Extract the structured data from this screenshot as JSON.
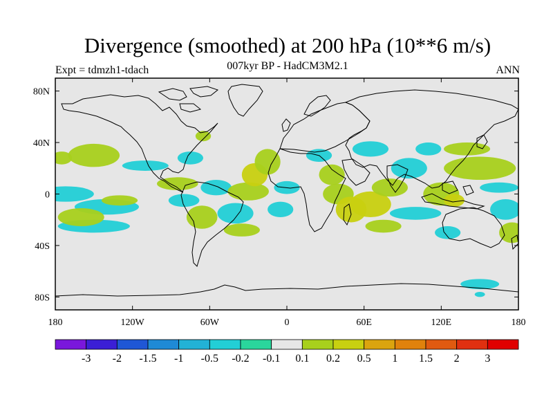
{
  "title": "Divergence (smoothed) at 200 hPa (10**6 m/s)",
  "subtitle": "007kyr BP - HadCM3M2.1",
  "left_label": "Expt = tdmzh1-tdach",
  "right_label": "ANN",
  "lat_labels": [
    "80N",
    "40N",
    "0",
    "40S",
    "80S"
  ],
  "lat_values": [
    80,
    40,
    0,
    -40,
    -80
  ],
  "lon_labels": [
    "180",
    "120W",
    "60W",
    "0",
    "60E",
    "120E",
    "180"
  ],
  "lon_values": [
    -180,
    -120,
    -60,
    0,
    60,
    120,
    180
  ],
  "colorbar": {
    "labels": [
      "-3",
      "-2",
      "-1.5",
      "-1",
      "-0.5",
      "-0.2",
      "-0.1",
      "0.1",
      "0.2",
      "0.5",
      "1",
      "1.5",
      "2",
      "3"
    ],
    "colors": [
      "#7a17dc",
      "#3b1fd6",
      "#1f57d6",
      "#1f8ad6",
      "#22b2d6",
      "#22cfd6",
      "#2ad69c",
      "#e6e6e6",
      "#a8d01c",
      "#c8d010",
      "#dba40f",
      "#e0820c",
      "#e05a10",
      "#e03010",
      "#e00000"
    ]
  },
  "colors": {
    "land_ocean_bg": "#e6e6e6",
    "coast": "#000000"
  },
  "chart_data": {
    "type": "map",
    "projection": "cylindrical-equidistant",
    "title": "Divergence (smoothed) at 200 hPa (10**6 m/s)",
    "subtitle": "007kyr BP - HadCM3M2.1",
    "lon_range": [
      -180,
      180
    ],
    "lat_range": [
      -90,
      90
    ],
    "note": "Approximate anomaly patches (lon/lat centers, half-widths in degrees, class = contour level color index)",
    "patches": [
      {
        "lon": -172,
        "lat": 0,
        "rx": 22,
        "ry": 6,
        "cls": 5
      },
      {
        "lon": -140,
        "lat": -10,
        "rx": 25,
        "ry": 6,
        "cls": 5
      },
      {
        "lon": -150,
        "lat": 30,
        "rx": 20,
        "ry": 9,
        "cls": 8
      },
      {
        "lon": -175,
        "lat": 28,
        "rx": 8,
        "ry": 5,
        "cls": 8
      },
      {
        "lon": -150,
        "lat": -25,
        "rx": 28,
        "ry": 5,
        "cls": 5
      },
      {
        "lon": -160,
        "lat": -18,
        "rx": 18,
        "ry": 7,
        "cls": 8
      },
      {
        "lon": -130,
        "lat": -5,
        "rx": 14,
        "ry": 4,
        "cls": 8
      },
      {
        "lon": -110,
        "lat": 22,
        "rx": 18,
        "ry": 4,
        "cls": 5
      },
      {
        "lon": -85,
        "lat": 8,
        "rx": 16,
        "ry": 5,
        "cls": 8
      },
      {
        "lon": -80,
        "lat": -5,
        "rx": 12,
        "ry": 5,
        "cls": 5
      },
      {
        "lon": -66,
        "lat": -18,
        "rx": 12,
        "ry": 9,
        "cls": 8
      },
      {
        "lon": -40,
        "lat": -15,
        "rx": 14,
        "ry": 8,
        "cls": 5
      },
      {
        "lon": -55,
        "lat": 5,
        "rx": 12,
        "ry": 6,
        "cls": 5
      },
      {
        "lon": -30,
        "lat": 2,
        "rx": 16,
        "ry": 7,
        "cls": 8
      },
      {
        "lon": -25,
        "lat": 15,
        "rx": 10,
        "ry": 9,
        "cls": 9
      },
      {
        "lon": -15,
        "lat": 25,
        "rx": 10,
        "ry": 10,
        "cls": 8
      },
      {
        "lon": -35,
        "lat": -28,
        "rx": 14,
        "ry": 5,
        "cls": 8
      },
      {
        "lon": -75,
        "lat": 28,
        "rx": 10,
        "ry": 5,
        "cls": 5
      },
      {
        "lon": -65,
        "lat": 45,
        "rx": 6,
        "ry": 4,
        "cls": 8
      },
      {
        "lon": 0,
        "lat": 5,
        "rx": 10,
        "ry": 5,
        "cls": 5
      },
      {
        "lon": -5,
        "lat": -12,
        "rx": 10,
        "ry": 6,
        "cls": 5
      },
      {
        "lon": 25,
        "lat": 30,
        "rx": 10,
        "ry": 5,
        "cls": 5
      },
      {
        "lon": 35,
        "lat": 15,
        "rx": 10,
        "ry": 8,
        "cls": 8
      },
      {
        "lon": 40,
        "lat": 0,
        "rx": 12,
        "ry": 8,
        "cls": 8
      },
      {
        "lon": 50,
        "lat": -12,
        "rx": 12,
        "ry": 10,
        "cls": 9
      },
      {
        "lon": 65,
        "lat": -8,
        "rx": 16,
        "ry": 10,
        "cls": 9
      },
      {
        "lon": 75,
        "lat": -25,
        "rx": 14,
        "ry": 5,
        "cls": 8
      },
      {
        "lon": 80,
        "lat": 5,
        "rx": 14,
        "ry": 7,
        "cls": 8
      },
      {
        "lon": 65,
        "lat": 35,
        "rx": 14,
        "ry": 6,
        "cls": 5
      },
      {
        "lon": 95,
        "lat": 20,
        "rx": 14,
        "ry": 8,
        "cls": 5
      },
      {
        "lon": 110,
        "lat": 35,
        "rx": 10,
        "ry": 5,
        "cls": 5
      },
      {
        "lon": 120,
        "lat": 0,
        "rx": 14,
        "ry": 9,
        "cls": 8
      },
      {
        "lon": 130,
        "lat": -5,
        "rx": 8,
        "ry": 5,
        "cls": 9
      },
      {
        "lon": 150,
        "lat": 20,
        "rx": 28,
        "ry": 9,
        "cls": 8
      },
      {
        "lon": 140,
        "lat": 35,
        "rx": 18,
        "ry": 5,
        "cls": 8
      },
      {
        "lon": 165,
        "lat": 5,
        "rx": 15,
        "ry": 4,
        "cls": 5
      },
      {
        "lon": 100,
        "lat": -15,
        "rx": 20,
        "ry": 5,
        "cls": 5
      },
      {
        "lon": 170,
        "lat": -12,
        "rx": 12,
        "ry": 8,
        "cls": 5
      },
      {
        "lon": 175,
        "lat": -30,
        "rx": 10,
        "ry": 8,
        "cls": 8
      },
      {
        "lon": 125,
        "lat": -30,
        "rx": 10,
        "ry": 5,
        "cls": 5
      },
      {
        "lon": 150,
        "lat": -70,
        "rx": 15,
        "ry": 4,
        "cls": 5
      },
      {
        "lon": 150,
        "lat": -78,
        "rx": 4,
        "ry": 2,
        "cls": 5
      }
    ]
  }
}
